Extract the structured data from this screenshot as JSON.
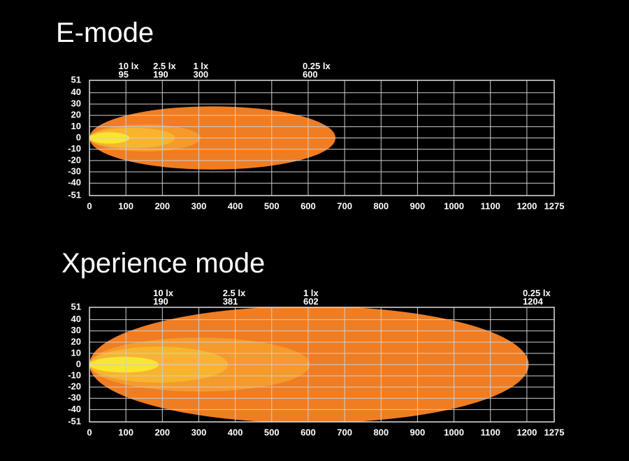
{
  "chart_data": [
    {
      "type": "beam",
      "title": "E-mode",
      "xlim": [
        0,
        1275
      ],
      "ylim": [
        -51,
        51
      ],
      "xticks": [
        0,
        100,
        200,
        300,
        400,
        500,
        600,
        700,
        800,
        900,
        1000,
        1100,
        1200,
        1275
      ],
      "yticks": [
        51,
        40,
        30,
        20,
        10,
        0,
        -10,
        -20,
        -30,
        -40,
        -51
      ],
      "grid": true,
      "series": [
        {
          "name": "0.25 lx",
          "value": 600,
          "color": "#f07d22",
          "x_end": 675,
          "half_width": 28
        },
        {
          "name": "1 lx",
          "value": 300,
          "color": "#f59a2b",
          "x_end": 305,
          "half_width": 12
        },
        {
          "name": "2.5 lx",
          "value": 190,
          "color": "#f8b42e",
          "x_end": 235,
          "half_width": 9
        },
        {
          "name": "10 lx",
          "value": 95,
          "color": "#fae62e",
          "x_end": 110,
          "half_width": 5
        }
      ]
    },
    {
      "type": "beam",
      "title": "Xperience mode",
      "xlim": [
        0,
        1275
      ],
      "ylim": [
        -51,
        51
      ],
      "xticks": [
        0,
        100,
        200,
        300,
        400,
        500,
        600,
        700,
        800,
        900,
        1000,
        1100,
        1200,
        1275
      ],
      "yticks": [
        51,
        40,
        30,
        20,
        10,
        0,
        -10,
        -20,
        -30,
        -40,
        -51
      ],
      "grid": true,
      "series": [
        {
          "name": "0.25 lx",
          "value": 1204,
          "color": "#f07d22",
          "x_end": 1205,
          "half_width": 52
        },
        {
          "name": "1 lx",
          "value": 602,
          "color": "#f59a2b",
          "x_end": 605,
          "half_width": 24
        },
        {
          "name": "2.5 lx",
          "value": 381,
          "color": "#f8b42e",
          "x_end": 380,
          "half_width": 16
        },
        {
          "name": "10 lx",
          "value": 190,
          "color": "#fae62e",
          "x_end": 190,
          "half_width": 7
        }
      ]
    }
  ]
}
